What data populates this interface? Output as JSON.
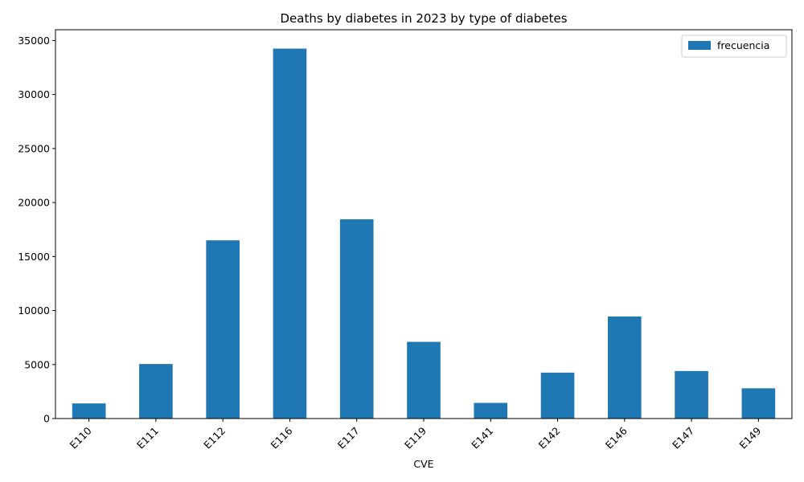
{
  "chart_data": {
    "type": "bar",
    "title": "Deaths by diabetes in 2023 by type of diabetes",
    "xlabel": "CVE",
    "ylabel": "",
    "categories": [
      "E110",
      "E111",
      "E112",
      "E116",
      "E117",
      "E119",
      "E141",
      "E142",
      "E146",
      "E147",
      "E149"
    ],
    "series": [
      {
        "name": "frecuencia",
        "color": "#1f77b4",
        "values": [
          1400,
          5050,
          16500,
          34250,
          18450,
          7100,
          1450,
          4250,
          9450,
          4400,
          2800
        ]
      }
    ],
    "ylim": [
      0,
      36000
    ],
    "yticks": [
      0,
      5000,
      10000,
      15000,
      20000,
      25000,
      30000,
      35000
    ],
    "grid": false,
    "legend_position": "top-right"
  }
}
